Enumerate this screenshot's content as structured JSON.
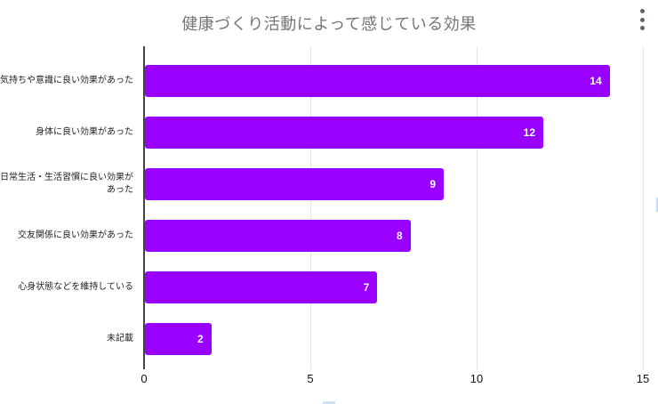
{
  "header": {
    "title": "健康づくり活動によって感じている効果",
    "title_color": "#757575",
    "menu_icon": "kebab-menu-icon"
  },
  "chart_data": {
    "type": "bar",
    "orientation": "horizontal",
    "title": "健康づくり活動によって感じている効果",
    "categories": [
      "気持ちや意識に良い効果があった",
      "身体に良い効果があった",
      "日常生活・生活習慣に良い効果があった",
      "交友関係に良い効果があった",
      "心身状態などを維持している",
      "未記載"
    ],
    "values": [
      14,
      12,
      9,
      8,
      7,
      2
    ],
    "xlabel": "",
    "ylabel": "",
    "xlim": [
      0,
      15
    ],
    "x_ticks": [
      0,
      5,
      10,
      15
    ],
    "grid": true,
    "value_labels_inside_bars": true,
    "legend_position": "bottom (cut off at image edge)",
    "colors": {
      "bar": "#9900ff",
      "value_label": "#ffffff",
      "gridline": "#e3e3e3",
      "axis_line": "#424242",
      "tick_label": "#111111",
      "category_label": "#1f1f1f"
    }
  },
  "fragments": {
    "bottom_legend_swatch_color": "#cfe2f3",
    "right_edge_sliver_color": "#c3d9f5"
  }
}
